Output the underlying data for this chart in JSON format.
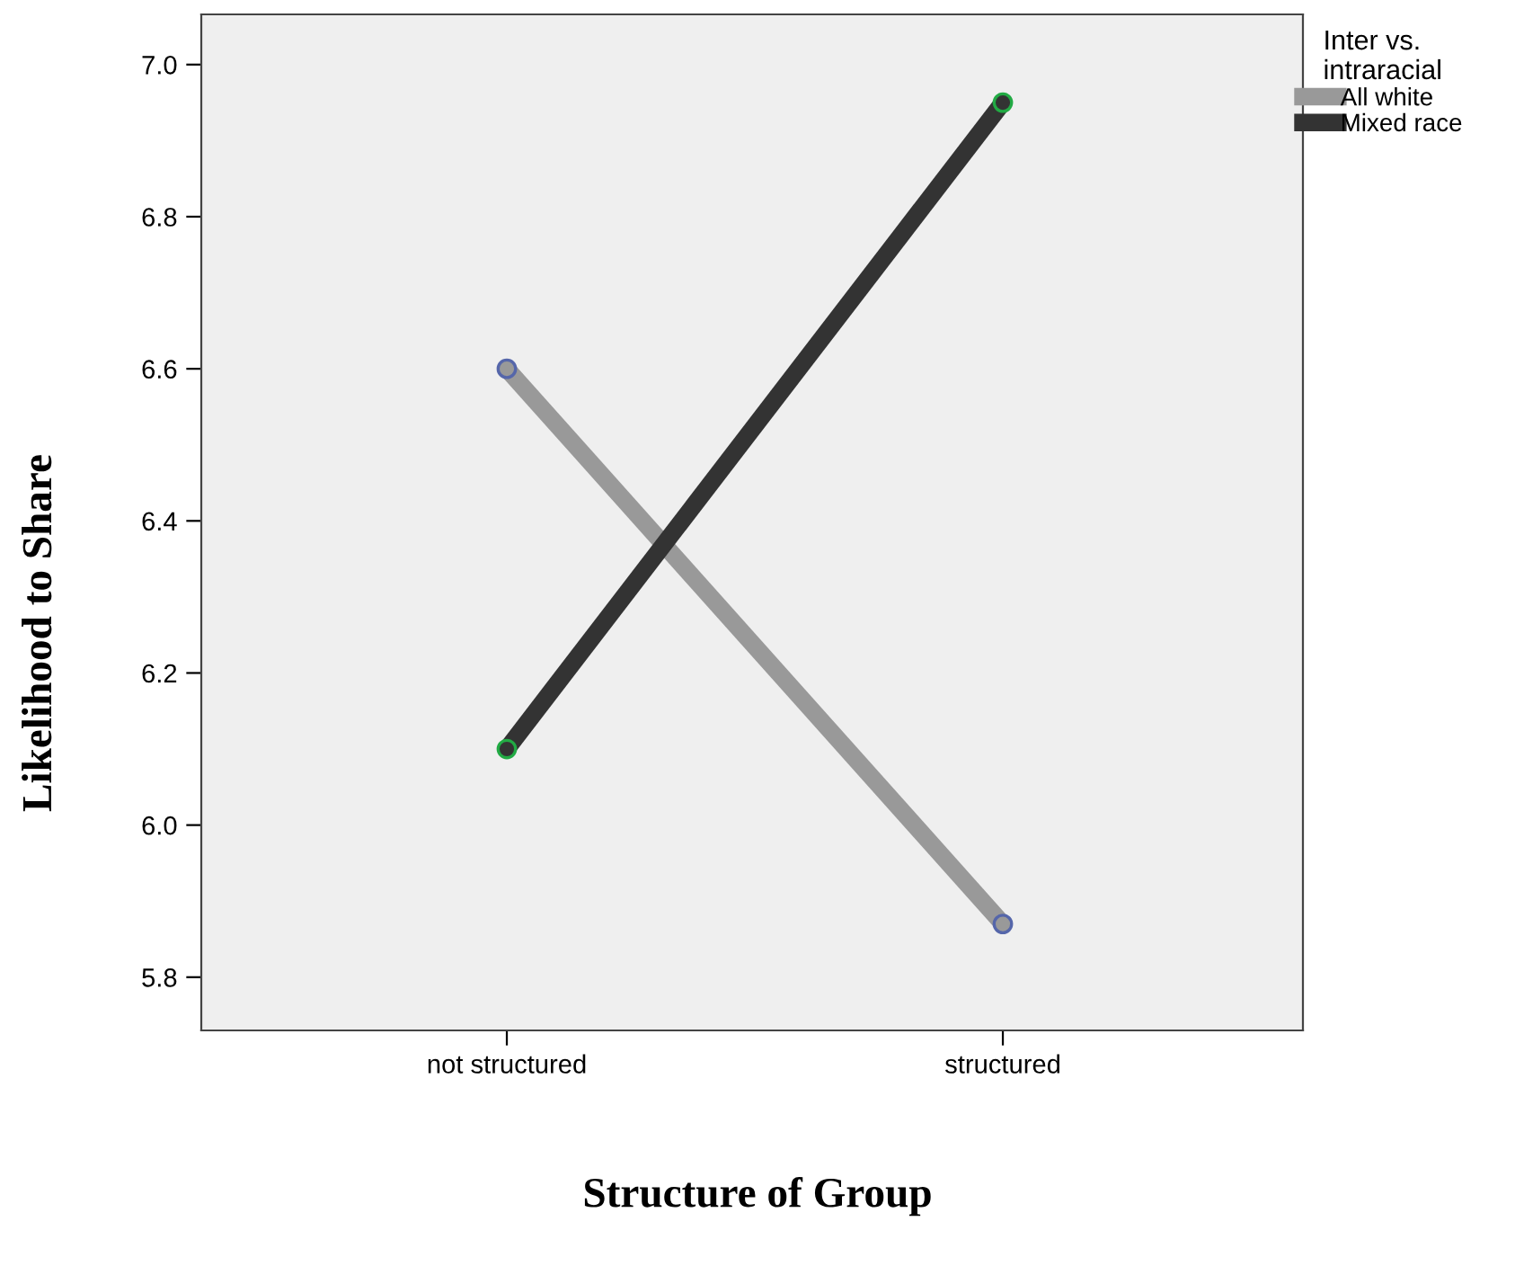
{
  "chart_data": {
    "type": "line",
    "xlabel": "Structure of Group",
    "ylabel": "Likelihood to Share",
    "legend_title": "Inter vs.\nintraracial",
    "categories": [
      "not structured",
      "structured"
    ],
    "series": [
      {
        "name": "All white",
        "color": "#999999",
        "values": [
          6.6,
          5.87
        ]
      },
      {
        "name": "Mixed race",
        "color": "#333333",
        "values": [
          6.1,
          6.95
        ]
      }
    ],
    "ylim": [
      5.73,
      7.066
    ],
    "yticks": [
      {
        "value": 5.8,
        "label": "5.8"
      },
      {
        "value": 6.0,
        "label": "6.0"
      },
      {
        "value": 6.2,
        "label": "6.2"
      },
      {
        "value": 6.4,
        "label": "6.4"
      },
      {
        "value": 6.6,
        "label": "6.6"
      },
      {
        "value": 6.8,
        "label": "6.8"
      },
      {
        "value": 7.0,
        "label": "7.0"
      }
    ],
    "grid": false,
    "legend": "top right",
    "marker": "circle",
    "line_style": "solid"
  }
}
